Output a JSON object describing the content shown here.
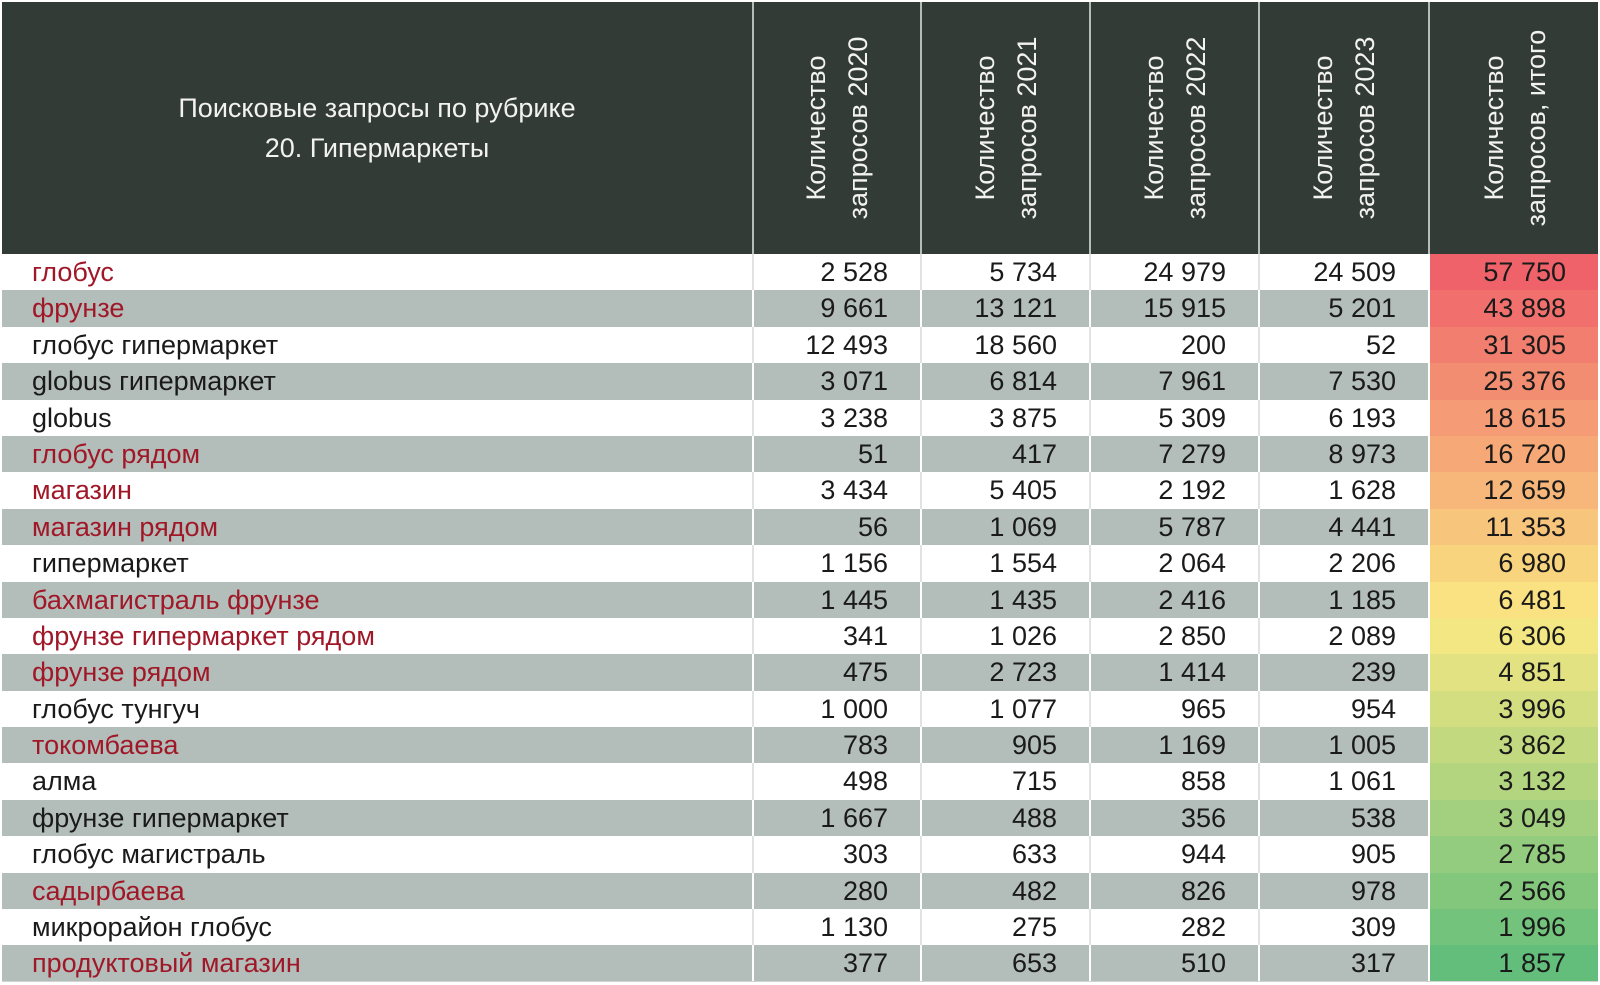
{
  "chart_data": {
    "type": "table",
    "header": {
      "title_line1": "Поисковые запросы по рубрике",
      "title_line2": "20. Гипермаркеты",
      "columns": [
        {
          "line1": "Количество",
          "line2": "запросов 2020"
        },
        {
          "line1": "Количество",
          "line2": "запросов 2021"
        },
        {
          "line1": "Количество",
          "line2": "запросов 2022"
        },
        {
          "line1": "Количество",
          "line2": "запросов 2023"
        },
        {
          "line1": "Количество",
          "line2": "запросов, итого"
        }
      ]
    },
    "rows": [
      {
        "name": "глобус",
        "values": [
          "2 528",
          "5 734",
          "24 979",
          "24 509"
        ],
        "total": "57 750",
        "total_value": 57750,
        "style": "red",
        "band": "white"
      },
      {
        "name": "фрунзе",
        "values": [
          "9 661",
          "13 121",
          "15 915",
          "5 201"
        ],
        "total": "43 898",
        "total_value": 43898,
        "style": "red",
        "band": "gray"
      },
      {
        "name": "глобус гипермаркет",
        "values": [
          "12 493",
          "18 560",
          "200",
          "52"
        ],
        "total": "31 305",
        "total_value": 31305,
        "style": "white",
        "band": "white"
      },
      {
        "name": "globus гипермаркет",
        "values": [
          "3 071",
          "6 814",
          "7 961",
          "7 530"
        ],
        "total": "25 376",
        "total_value": 25376,
        "style": "gray",
        "band": "gray"
      },
      {
        "name": "globus",
        "values": [
          "3 238",
          "3 875",
          "5 309",
          "6 193"
        ],
        "total": "18 615",
        "total_value": 18615,
        "style": "white",
        "band": "white"
      },
      {
        "name": "глобус рядом",
        "values": [
          "51",
          "417",
          "7 279",
          "8 973"
        ],
        "total": "16 720",
        "total_value": 16720,
        "style": "red",
        "band": "gray"
      },
      {
        "name": "магазин",
        "values": [
          "3 434",
          "5 405",
          "2 192",
          "1 628"
        ],
        "total": "12 659",
        "total_value": 12659,
        "style": "red",
        "band": "white"
      },
      {
        "name": "магазин рядом",
        "values": [
          "56",
          "1 069",
          "5 787",
          "4 441"
        ],
        "total": "11 353",
        "total_value": 11353,
        "style": "red",
        "band": "gray"
      },
      {
        "name": "гипермаркет",
        "values": [
          "1 156",
          "1 554",
          "2 064",
          "2 206"
        ],
        "total": "6 980",
        "total_value": 6980,
        "style": "white",
        "band": "white"
      },
      {
        "name": "бахмагистраль фрунзе",
        "values": [
          "1 445",
          "1 435",
          "2 416",
          "1 185"
        ],
        "total": "6 481",
        "total_value": 6481,
        "style": "red",
        "band": "gray"
      },
      {
        "name": "фрунзе гипермаркет рядом",
        "values": [
          "341",
          "1 026",
          "2 850",
          "2 089"
        ],
        "total": "6 306",
        "total_value": 6306,
        "style": "red",
        "band": "white"
      },
      {
        "name": "фрунзе рядом",
        "values": [
          "475",
          "2 723",
          "1 414",
          "239"
        ],
        "total": "4 851",
        "total_value": 4851,
        "style": "red",
        "band": "gray"
      },
      {
        "name": "глобус тунгуч",
        "values": [
          "1 000",
          "1 077",
          "965",
          "954"
        ],
        "total": "3 996",
        "total_value": 3996,
        "style": "white",
        "band": "white"
      },
      {
        "name": "токомбаева",
        "values": [
          "783",
          "905",
          "1 169",
          "1 005"
        ],
        "total": "3 862",
        "total_value": 3862,
        "style": "red",
        "band": "gray"
      },
      {
        "name": "алма",
        "values": [
          "498",
          "715",
          "858",
          "1 061"
        ],
        "total": "3 132",
        "total_value": 3132,
        "style": "white",
        "band": "white"
      },
      {
        "name": "фрунзе гипермаркет",
        "values": [
          "1 667",
          "488",
          "356",
          "538"
        ],
        "total": "3 049",
        "total_value": 3049,
        "style": "gray",
        "band": "gray"
      },
      {
        "name": "глобус магистраль",
        "values": [
          "303",
          "633",
          "944",
          "905"
        ],
        "total": "2 785",
        "total_value": 2785,
        "style": "white",
        "band": "white"
      },
      {
        "name": "садырбаева",
        "values": [
          "280",
          "482",
          "826",
          "978"
        ],
        "total": "2 566",
        "total_value": 2566,
        "style": "red",
        "band": "gray"
      },
      {
        "name": "микрорайон глобус",
        "values": [
          "1 130",
          "275",
          "282",
          "309"
        ],
        "total": "1 996",
        "total_value": 1996,
        "style": "white",
        "band": "white"
      },
      {
        "name": "продуктовый магазин",
        "values": [
          "377",
          "653",
          "510",
          "317"
        ],
        "total": "1 857",
        "total_value": 1857,
        "style": "red",
        "band": "gray"
      }
    ],
    "colors": {
      "header_bg": "#333b37",
      "highlight_row_bg": "#ffc9d0",
      "highlight_row_text": "#a01828",
      "band_gray": "#b3bdb9",
      "scale_high": "#f0626a",
      "scale_mid": "#fbe983",
      "scale_low": "#63be7b"
    }
  }
}
